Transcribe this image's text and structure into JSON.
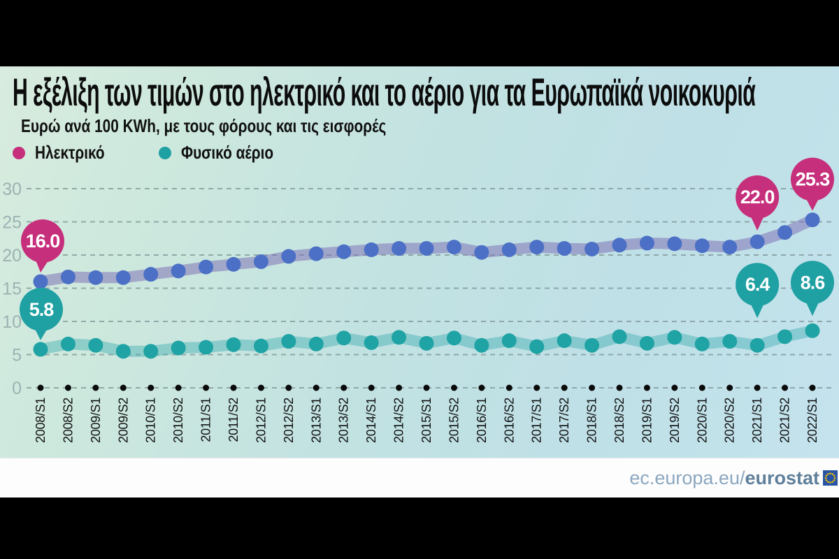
{
  "chart_data": {
    "type": "line",
    "title": "Η εξέλιξη των τιμών στο ηλεκτρικό και το αέριο για τα Ευρωπαϊκά νοικοκυριά",
    "subtitle": "Ευρώ ανά 100 KWh, με τους φόρους και τις εισφορές",
    "legend_position": "top-left",
    "grid": "horizontal-dashed",
    "ylim": [
      0,
      30
    ],
    "yticks": [
      0,
      5,
      10,
      15,
      20,
      25,
      30
    ],
    "categories": [
      "2008/S1",
      "2008/S2",
      "2009/S1",
      "2009/S2",
      "2010/S1",
      "2010/S2",
      "2011/S1",
      "2011/S2",
      "2012/S1",
      "2012/S2",
      "2013/S1",
      "2013/S2",
      "2014/S1",
      "2014/S2",
      "2015/S1",
      "2015/S2",
      "2016/S1",
      "2016/S2",
      "2017/S1",
      "2017/S2",
      "2018/S1",
      "2018/S2",
      "2019/S1",
      "2019/S2",
      "2020/S1",
      "2020/S2",
      "2021/S1",
      "2021/S2",
      "2022/S1"
    ],
    "series": [
      {
        "name": "Ηλεκτρικό",
        "accent_color": "#c62f7b",
        "dot_color": "#4b70c5",
        "band_color": "rgba(125,110,180,0.52)",
        "values": [
          16.0,
          16.7,
          16.6,
          16.6,
          17.1,
          17.6,
          18.2,
          18.6,
          19.0,
          19.8,
          20.2,
          20.5,
          20.8,
          21.0,
          21.0,
          21.2,
          20.4,
          20.8,
          21.2,
          21.0,
          20.9,
          21.5,
          21.8,
          21.7,
          21.4,
          21.2,
          22.0,
          23.4,
          25.3
        ]
      },
      {
        "name": "Φυσικό αέριο",
        "accent_color": "#1fa0a3",
        "dot_color": "#1fa3a4",
        "band_color": "rgba(47,168,172,0.40)",
        "values": [
          5.8,
          6.6,
          6.4,
          5.5,
          5.5,
          6.0,
          6.1,
          6.5,
          6.3,
          7.0,
          6.6,
          7.5,
          6.8,
          7.6,
          6.7,
          7.5,
          6.4,
          7.1,
          6.2,
          7.1,
          6.4,
          7.7,
          6.7,
          7.6,
          6.6,
          7.0,
          6.4,
          7.7,
          8.6
        ]
      }
    ],
    "callouts": [
      {
        "series": 0,
        "index": 0,
        "label": "16.0"
      },
      {
        "series": 0,
        "index": 26,
        "label": "22.0"
      },
      {
        "series": 0,
        "index": 28,
        "label": "25.3"
      },
      {
        "series": 1,
        "index": 0,
        "label": "5.8"
      },
      {
        "series": 1,
        "index": 26,
        "label": "6.4"
      },
      {
        "series": 1,
        "index": 28,
        "label": "8.6"
      }
    ]
  },
  "colors": {
    "grid_line": "#7e9496",
    "axis_value_label": "#9ab0b0",
    "category_label": "#111111",
    "axis_dot": "#0a0a0a",
    "callout_text": "#ffffff",
    "panel_background_start": "#d8ecdf",
    "panel_background_end": "#c4e3ee",
    "footer_background": "#fdfdfd",
    "eu_flag_blue": "#2853a4",
    "eu_flag_stars": "#f7c600"
  },
  "footer": {
    "text_regular": "ec.europa.eu/",
    "text_bold": "eurostat"
  }
}
